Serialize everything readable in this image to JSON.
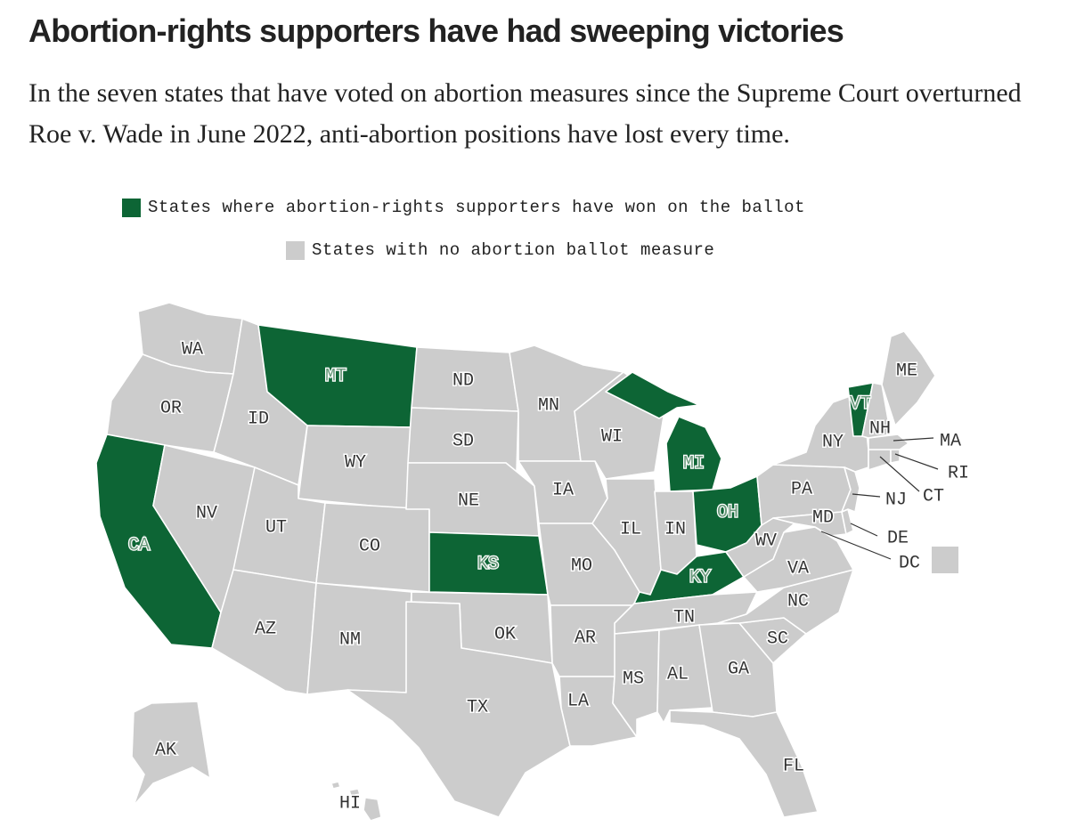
{
  "header": {
    "title": "Abortion-rights supporters have had sweeping victories",
    "subtitle": "In the seven states that have voted on abortion measures since the Supreme Court overturned Roe v. Wade in June 2022, anti-abortion positions have lost every time."
  },
  "legend": {
    "won_label": "States where abortion-rights supporters have won on the ballot",
    "none_label": "States with no abortion ballot measure"
  },
  "colors": {
    "won": "#0d6535",
    "none": "#cccccc",
    "border": "#ffffff"
  },
  "states": [
    {
      "code": "WA",
      "status": "none"
    },
    {
      "code": "OR",
      "status": "none"
    },
    {
      "code": "CA",
      "status": "won"
    },
    {
      "code": "NV",
      "status": "none"
    },
    {
      "code": "ID",
      "status": "none"
    },
    {
      "code": "MT",
      "status": "won"
    },
    {
      "code": "WY",
      "status": "none"
    },
    {
      "code": "UT",
      "status": "none"
    },
    {
      "code": "AZ",
      "status": "none"
    },
    {
      "code": "CO",
      "status": "none"
    },
    {
      "code": "NM",
      "status": "none"
    },
    {
      "code": "ND",
      "status": "none"
    },
    {
      "code": "SD",
      "status": "none"
    },
    {
      "code": "NE",
      "status": "none"
    },
    {
      "code": "KS",
      "status": "won"
    },
    {
      "code": "OK",
      "status": "none"
    },
    {
      "code": "TX",
      "status": "none"
    },
    {
      "code": "MN",
      "status": "none"
    },
    {
      "code": "IA",
      "status": "none"
    },
    {
      "code": "MO",
      "status": "none"
    },
    {
      "code": "AR",
      "status": "none"
    },
    {
      "code": "LA",
      "status": "none"
    },
    {
      "code": "WI",
      "status": "none"
    },
    {
      "code": "IL",
      "status": "none"
    },
    {
      "code": "MI",
      "status": "won"
    },
    {
      "code": "IN",
      "status": "none"
    },
    {
      "code": "OH",
      "status": "won"
    },
    {
      "code": "KY",
      "status": "won"
    },
    {
      "code": "TN",
      "status": "none"
    },
    {
      "code": "MS",
      "status": "none"
    },
    {
      "code": "AL",
      "status": "none"
    },
    {
      "code": "GA",
      "status": "none"
    },
    {
      "code": "FL",
      "status": "none"
    },
    {
      "code": "SC",
      "status": "none"
    },
    {
      "code": "NC",
      "status": "none"
    },
    {
      "code": "VA",
      "status": "none"
    },
    {
      "code": "WV",
      "status": "none"
    },
    {
      "code": "PA",
      "status": "none"
    },
    {
      "code": "NY",
      "status": "none"
    },
    {
      "code": "VT",
      "status": "won"
    },
    {
      "code": "NH",
      "status": "none"
    },
    {
      "code": "ME",
      "status": "none"
    },
    {
      "code": "MA",
      "status": "none"
    },
    {
      "code": "RI",
      "status": "none"
    },
    {
      "code": "CT",
      "status": "none"
    },
    {
      "code": "NJ",
      "status": "none"
    },
    {
      "code": "DE",
      "status": "none"
    },
    {
      "code": "MD",
      "status": "none"
    },
    {
      "code": "DC",
      "status": "none"
    },
    {
      "code": "AK",
      "status": "none"
    },
    {
      "code": "HI",
      "status": "none"
    }
  ]
}
